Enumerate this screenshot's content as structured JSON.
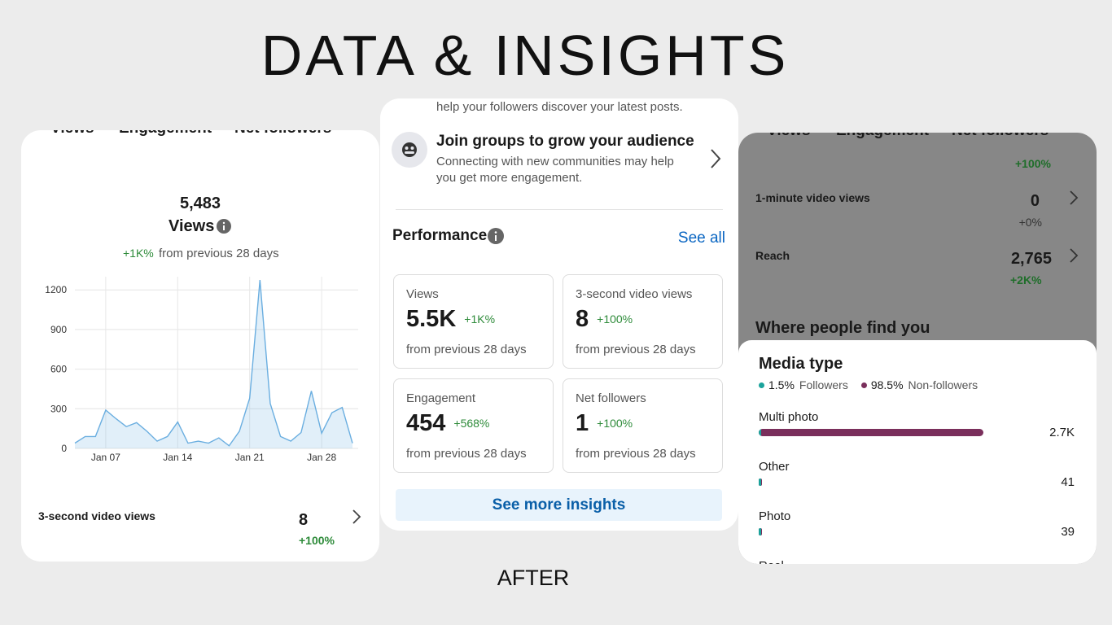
{
  "title": "DATA & INSIGHTS",
  "footer": "AFTER",
  "left": {
    "tabs": [
      "Views",
      "Engagement",
      "Net followers"
    ],
    "total": "5,483",
    "metric": "Views",
    "change": "+1K%",
    "change_note": "from previous 28 days",
    "chart": {
      "type": "line",
      "x": [
        "Jan 04",
        "Jan 05",
        "Jan 06",
        "Jan 07",
        "Jan 08",
        "Jan 09",
        "Jan 10",
        "Jan 11",
        "Jan 12",
        "Jan 13",
        "Jan 14",
        "Jan 15",
        "Jan 16",
        "Jan 17",
        "Jan 18",
        "Jan 19",
        "Jan 20",
        "Jan 21",
        "Jan 22",
        "Jan 23",
        "Jan 24",
        "Jan 25",
        "Jan 26",
        "Jan 27",
        "Jan 28",
        "Jan 29",
        "Jan 30",
        "Jan 31"
      ],
      "values": [
        40,
        90,
        90,
        290,
        225,
        165,
        195,
        130,
        55,
        90,
        200,
        40,
        55,
        40,
        80,
        20,
        130,
        380,
        1275,
        340,
        90,
        55,
        120,
        435,
        115,
        270,
        310,
        40
      ],
      "xticks": [
        "Jan 07",
        "Jan 14",
        "Jan 21",
        "Jan 28"
      ],
      "ylim": [
        0,
        1300
      ],
      "yticks": [
        0,
        300,
        600,
        900,
        1200
      ],
      "color": "#6aaee0",
      "grid": true
    },
    "row": {
      "label": "3-second video views",
      "value": "8",
      "change": "+100%"
    }
  },
  "middle": {
    "top_text": "help your followers discover your latest posts.",
    "tip_title": "Join groups to grow your audience",
    "tip_text": "Connecting with new communities may help you get more engagement.",
    "section": "Performance",
    "link": "See all",
    "tiles": [
      {
        "label": "Views",
        "value": "5.5K",
        "change": "+1K%",
        "note": "from previous 28 days"
      },
      {
        "label": "3-second video views",
        "value": "8",
        "change": "+100%",
        "note": "from previous 28 days"
      },
      {
        "label": "Engagement",
        "value": "454",
        "change": "+568%",
        "note": "from previous 28 days"
      },
      {
        "label": "Net followers",
        "value": "1",
        "change": "+100%",
        "note": "from previous 28 days"
      }
    ],
    "button": "See more insights"
  },
  "right": {
    "tabs": [
      "Views",
      "Engagement",
      "Net followers"
    ],
    "partial_change": "+100%",
    "rows": [
      {
        "label": "1-minute video views",
        "value": "0",
        "change": "+0%"
      },
      {
        "label": "Reach",
        "value": "2,765",
        "change": "+2K%"
      }
    ],
    "section": "Where people find you",
    "media": {
      "title": "Media type",
      "legend": [
        {
          "share": "1.5%",
          "name": "Followers",
          "color": "#1ba39c"
        },
        {
          "share": "98.5%",
          "name": "Non-followers",
          "color": "#7a2f5c"
        }
      ],
      "chart": {
        "type": "bar",
        "categories": [
          "Multi photo",
          "Other",
          "Photo",
          "Reel"
        ],
        "values": [
          2700,
          41,
          39,
          null
        ],
        "value_labels": [
          "2.7K",
          "41",
          "39",
          null
        ],
        "color": "#7a2f5c"
      }
    }
  }
}
